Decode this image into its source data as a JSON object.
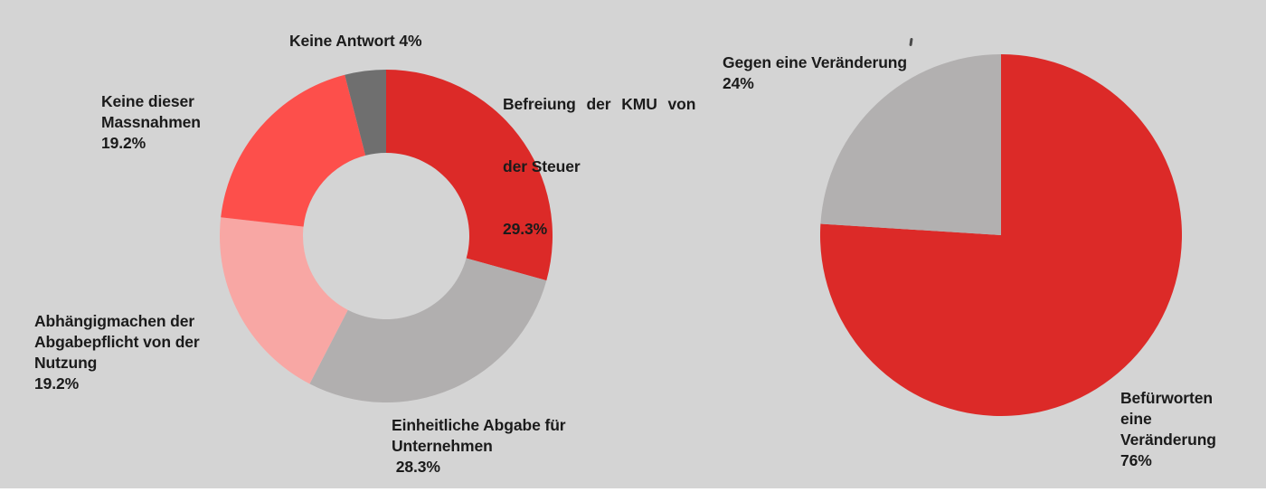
{
  "background_color": "#d4d4d4",
  "accent_red": "#dc2a28",
  "text_color": "#1b1b1b",
  "chart_data": [
    {
      "type": "pie",
      "subtype": "donut",
      "start_angle": "12-o-clock, clockwise",
      "unit": "%",
      "slices": [
        {
          "label": "Befreiung der KMU von der Steuer",
          "value": 29.3,
          "color": "#dc2a28"
        },
        {
          "label": "Einheitliche Abgabe für Unternehmen",
          "value": 28.3,
          "color": "#b1afaf"
        },
        {
          "label": "Abhängigmachen der Abgabepflicht von der Nutzung",
          "value": 19.2,
          "color": "#f8a7a4"
        },
        {
          "label": "Keine dieser Massnahmen",
          "value": 19.2,
          "color": "#fd4f4b"
        },
        {
          "label": "Keine Antwort",
          "value": 4,
          "color": "#6f6f6f"
        }
      ]
    },
    {
      "type": "pie",
      "subtype": "full",
      "start_angle": "12-o-clock, clockwise",
      "unit": "%",
      "slices": [
        {
          "label": "Befürworten eine Veränderung",
          "value": 76,
          "color": "#dc2a28"
        },
        {
          "label": "Gegen eine Veränderung",
          "value": 24,
          "color": "#b2b0b0"
        }
      ]
    }
  ],
  "labels": {
    "keine_antwort": "Keine Antwort 4%",
    "befreiung": {
      "line1": "Befreiung der KMU von",
      "line2": "der Steuer",
      "line3": "29.3%"
    },
    "keine_dieser": "Keine dieser\nMassnahmen\n19.2%",
    "abhaengig": "Abhängigmachen der\nAbgabepflicht von der\nNutzung\n19.2%",
    "einheitliche": "Einheitliche Abgabe für\nUnternehmen\n 28.3%",
    "gegen": "Gegen eine Veränderung\n24%",
    "befuerworten": "Befürworten\neine\nVeränderung\n76%"
  }
}
